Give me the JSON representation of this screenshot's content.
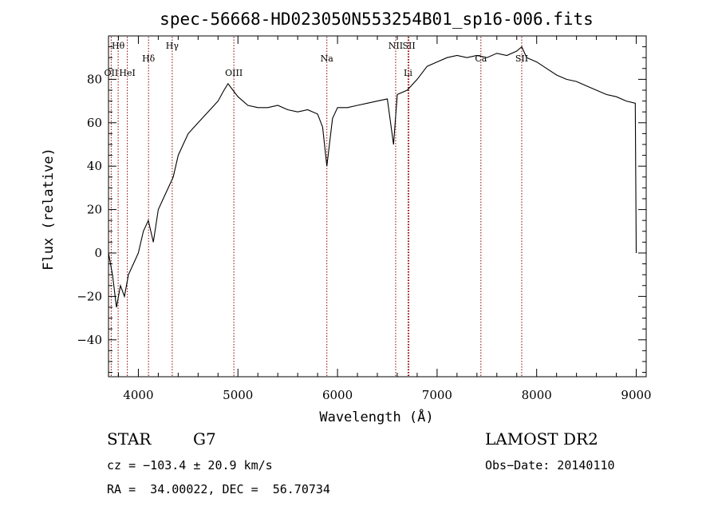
{
  "chart_data": {
    "type": "line",
    "title": "spec-56668-HD023050N553254B01_sp16-006.fits",
    "xlabel": "Wavelength (Å)",
    "ylabel": "Flux (relative)",
    "xlim": [
      3700,
      9100
    ],
    "ylim": [
      -57,
      100
    ],
    "x_ticks": [
      4000,
      5000,
      6000,
      7000,
      8000,
      9000
    ],
    "y_ticks": [
      -40,
      -20,
      0,
      20,
      40,
      60,
      80
    ],
    "grid": false,
    "series": [
      {
        "x": [
          3700,
          3740,
          3780,
          3820,
          3860,
          3900,
          3950,
          4000,
          4050,
          4100,
          4150,
          4200,
          4250,
          4300,
          4350,
          4400,
          4450,
          4500,
          4600,
          4700,
          4800,
          4860,
          4900,
          4950,
          5000,
          5100,
          5200,
          5300,
          5400,
          5500,
          5600,
          5700,
          5800,
          5850,
          5893,
          5950,
          6000,
          6100,
          6200,
          6300,
          6400,
          6500,
          6563,
          6600,
          6700,
          6800,
          6900,
          7000,
          7100,
          7200,
          7300,
          7400,
          7500,
          7600,
          7700,
          7800,
          7850,
          7900,
          8000,
          8100,
          8200,
          8300,
          8400,
          8500,
          8600,
          8700,
          8800,
          8900,
          8990,
          9000
        ],
        "y": [
          0,
          -10,
          -25,
          -15,
          -20,
          -10,
          -5,
          0,
          10,
          15,
          5,
          20,
          25,
          30,
          35,
          45,
          50,
          55,
          60,
          65,
          70,
          75,
          78,
          75,
          72,
          68,
          67,
          67,
          68,
          66,
          65,
          66,
          64,
          58,
          40,
          62,
          67,
          67,
          68,
          69,
          70,
          71,
          50,
          73,
          75,
          80,
          86,
          88,
          90,
          91,
          90,
          91,
          90,
          92,
          91,
          93,
          95,
          90,
          88,
          85,
          82,
          80,
          79,
          77,
          75,
          73,
          72,
          70,
          69,
          0
        ]
      }
    ],
    "line_markers": [
      {
        "label": "Hθ",
        "x": 3797,
        "row": 1
      },
      {
        "label": "OII",
        "x": 3727,
        "row": 3
      },
      {
        "label": "HeI",
        "x": 3889,
        "row": 3
      },
      {
        "label": "Hδ",
        "x": 4102,
        "row": 2
      },
      {
        "label": "Hγ",
        "x": 4340,
        "row": 1
      },
      {
        "label": "OIII",
        "x": 4959,
        "row": 3
      },
      {
        "label": "Na",
        "x": 5893,
        "row": 2
      },
      {
        "label": "NII",
        "x": 6584,
        "row": 1
      },
      {
        "label": "SII",
        "x": 6717,
        "row": 1
      },
      {
        "label": "Li",
        "x": 6708,
        "row": 3
      },
      {
        "label": "Ca",
        "x": 7440,
        "row": 2
      },
      {
        "label": "SII",
        "x": 7850,
        "row": 2
      }
    ],
    "line_color": "#8b0000",
    "spectrum_color": "#000000"
  },
  "info": {
    "object_class": "STAR",
    "subclass": "G7",
    "survey": "LAMOST DR2",
    "cz": "cz = −103.4 ± 20.9 km/s",
    "obs_date": "Obs−Date: 20140110",
    "coords": "RA =  34.00022, DEC =  56.70734"
  }
}
